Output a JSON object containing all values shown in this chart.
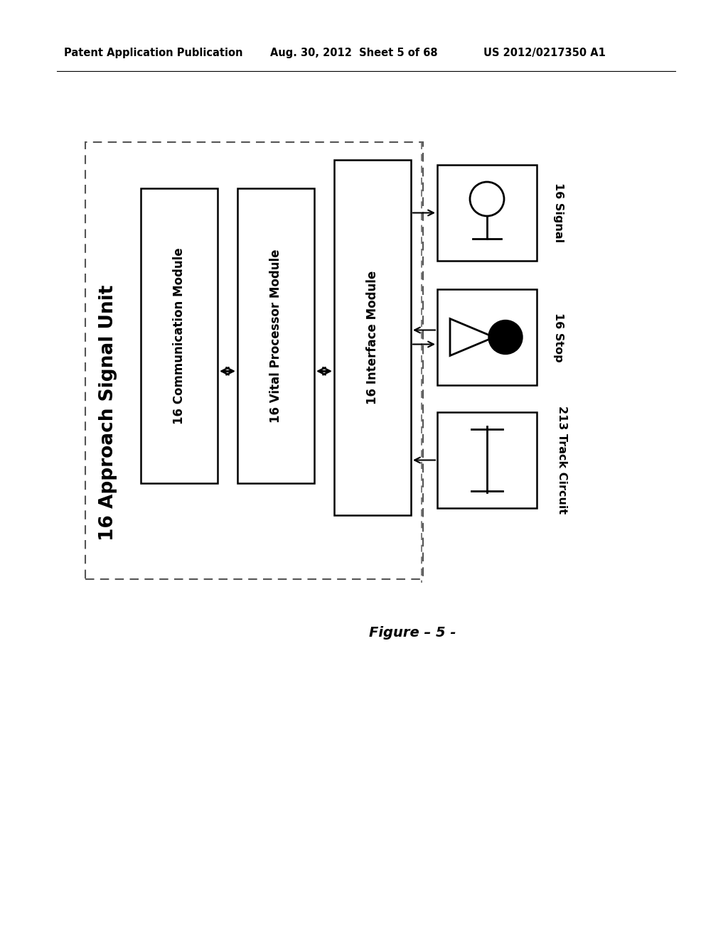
{
  "bg_color": "#ffffff",
  "header_left": "Patent Application Publication",
  "header_mid": "Aug. 30, 2012  Sheet 5 of 68",
  "header_right": "US 2012/0217350 A1",
  "title_block": "16 Approach Signal Unit",
  "box1_label": "16 Communication Module",
  "box2_label": "16 Vital Processor Module",
  "box3_label": "16 Interface Module",
  "right_box1_label": "16 Signal",
  "right_box2_label": "16 Stop",
  "right_box3_label": "213 Track Circuit",
  "figure_caption": "Figure – 5 -"
}
